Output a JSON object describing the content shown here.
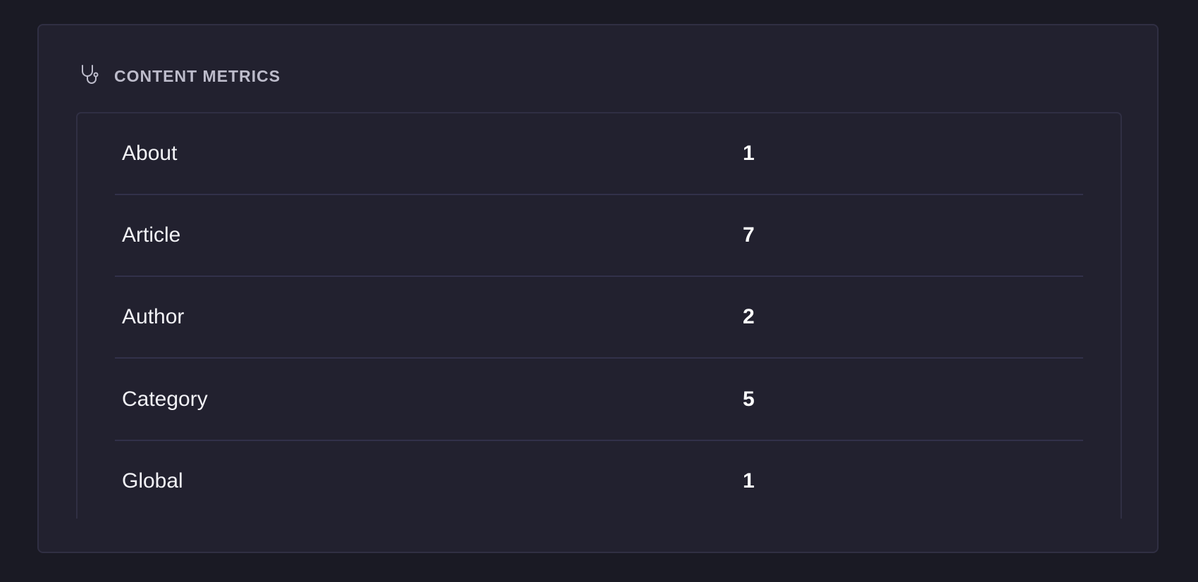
{
  "panel": {
    "title": "CONTENT METRICS",
    "icon": "stethoscope-icon",
    "rows": [
      {
        "label": "About",
        "value": "1"
      },
      {
        "label": "Article",
        "value": "7"
      },
      {
        "label": "Author",
        "value": "2"
      },
      {
        "label": "Category",
        "value": "5"
      },
      {
        "label": "Global",
        "value": "1"
      }
    ]
  }
}
